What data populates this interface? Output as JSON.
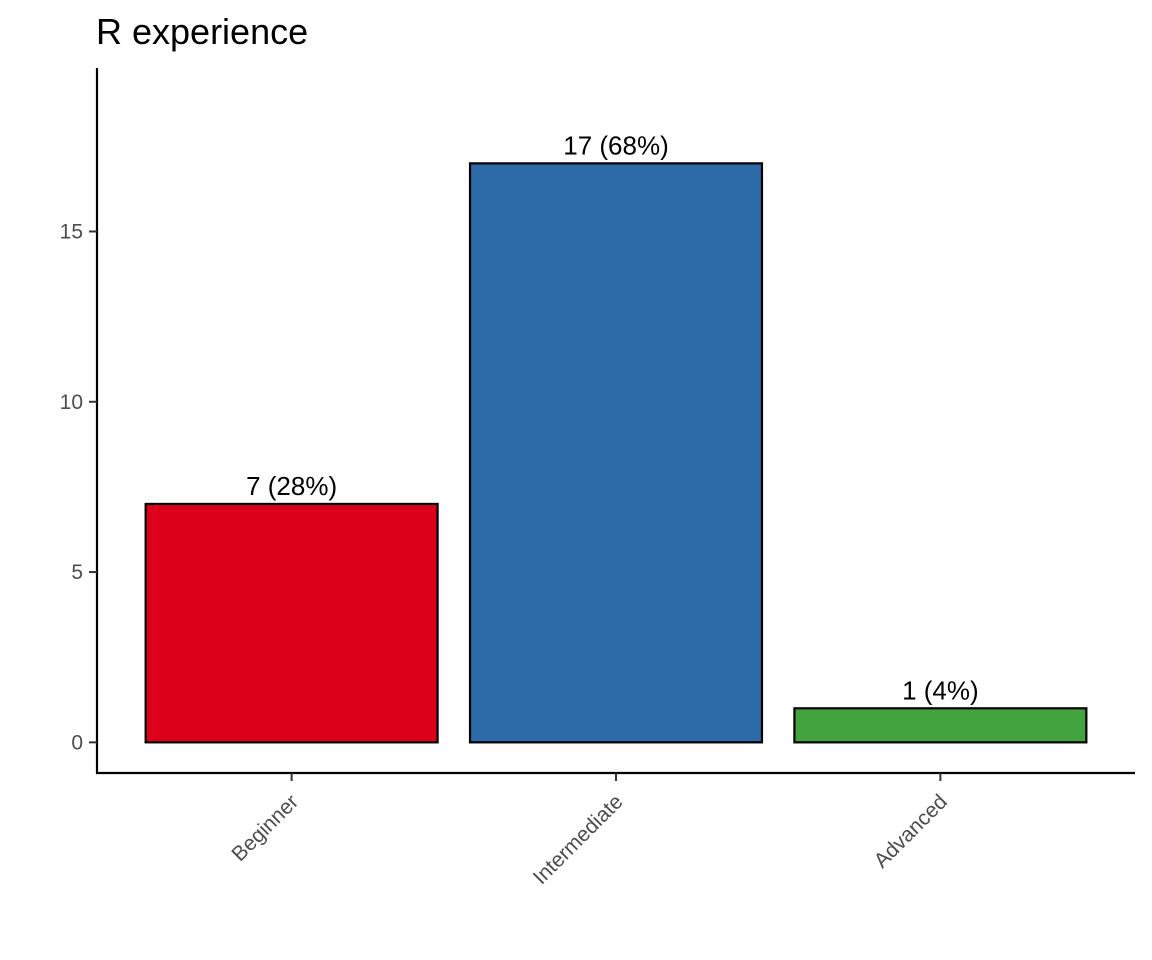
{
  "chart_data": {
    "type": "bar",
    "title": "R experience",
    "xlabel": "",
    "ylabel": "",
    "categories": [
      "Beginner",
      "Intermediate",
      "Advanced"
    ],
    "values": [
      7,
      17,
      1
    ],
    "bar_labels": [
      "7 (28%)",
      "17 (68%)",
      "1 (4%)"
    ],
    "colors": [
      "#DC001A",
      "#2D6AA8",
      "#43A33E"
    ],
    "yticks": [
      0,
      5,
      10,
      15
    ],
    "ytick_labels": [
      "0",
      "5",
      "10",
      "15"
    ],
    "ylim": [
      -0.9,
      19.8
    ],
    "grid": false,
    "legend": "none"
  }
}
